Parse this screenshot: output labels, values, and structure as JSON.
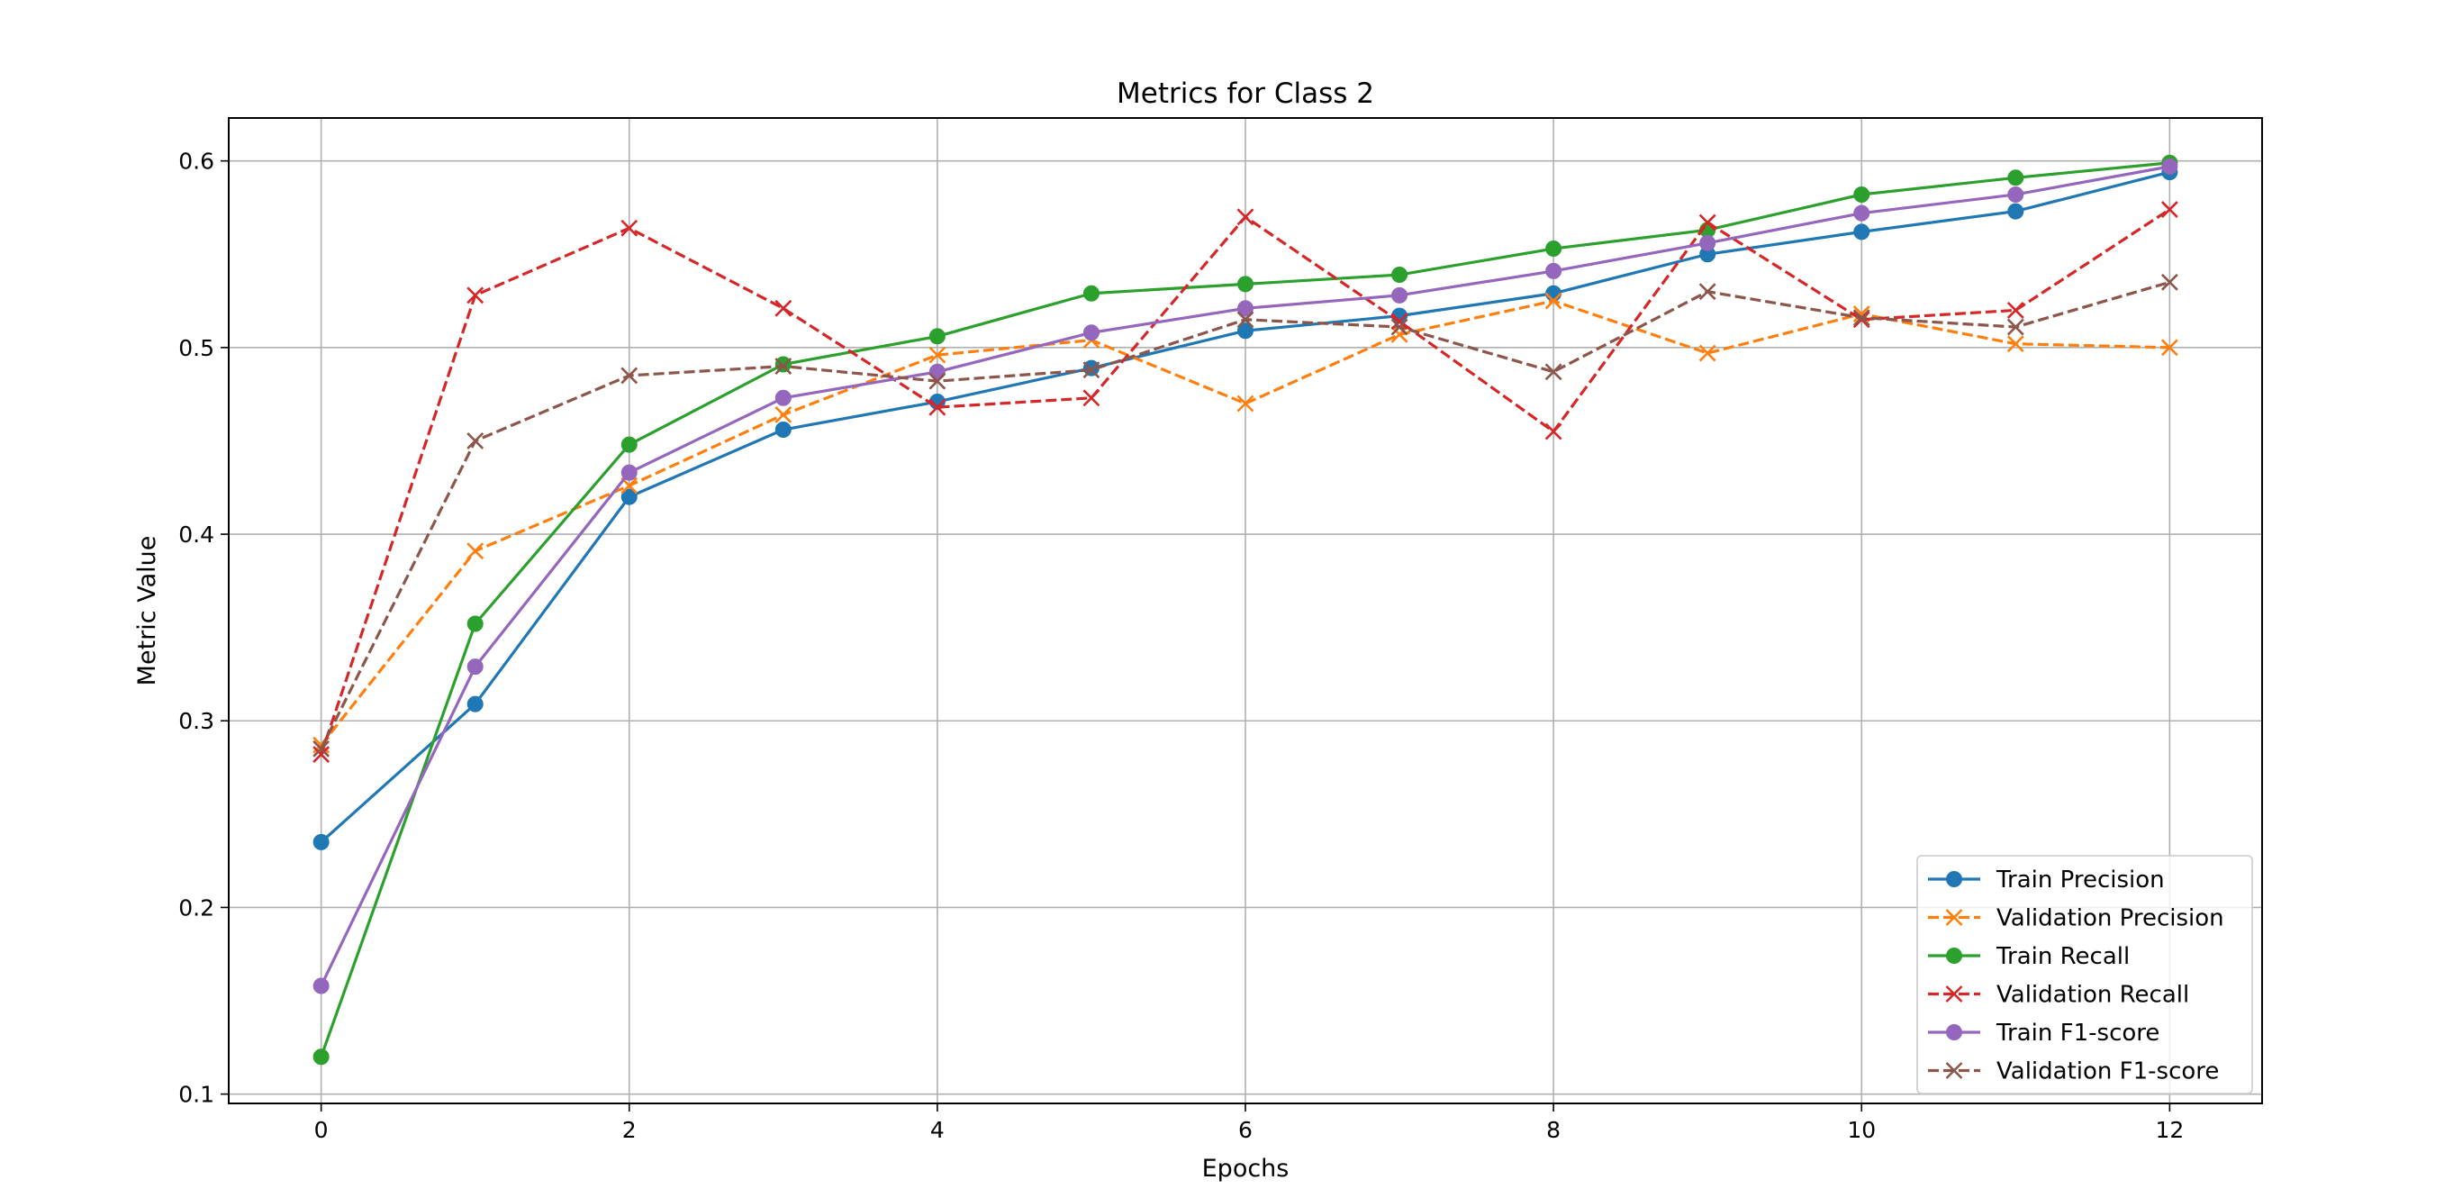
{
  "chart_data": {
    "type": "line",
    "title": "Metrics for Class 2",
    "xlabel": "Epochs",
    "ylabel": "Metric Value",
    "xlim": [
      -0.6,
      12.6
    ],
    "ylim": [
      0.095,
      0.623
    ],
    "xticks": [
      0,
      2,
      4,
      6,
      8,
      10,
      12
    ],
    "yticks": [
      0.1,
      0.2,
      0.3,
      0.4,
      0.5,
      0.6
    ],
    "xtick_labels": [
      "0",
      "2",
      "4",
      "6",
      "8",
      "10",
      "12"
    ],
    "ytick_labels": [
      "0.1",
      "0.2",
      "0.3",
      "0.4",
      "0.5",
      "0.6"
    ],
    "grid": true,
    "legend_position": "lower right",
    "x": [
      0,
      1,
      2,
      3,
      4,
      5,
      6,
      7,
      8,
      9,
      10,
      11,
      12
    ],
    "series": [
      {
        "name": "Train Precision",
        "color": "#1f77b4",
        "dash": "solid",
        "marker": "circle",
        "values": [
          0.235,
          0.309,
          0.42,
          0.456,
          0.471,
          0.489,
          0.509,
          0.517,
          0.529,
          0.55,
          0.562,
          0.573,
          0.594
        ]
      },
      {
        "name": "Validation Precision",
        "color": "#ff7f0e",
        "dash": "dashed",
        "marker": "x",
        "values": [
          0.287,
          0.391,
          0.426,
          0.464,
          0.496,
          0.504,
          0.47,
          0.507,
          0.525,
          0.497,
          0.518,
          0.502,
          0.5
        ]
      },
      {
        "name": "Train Recall",
        "color": "#2ca02c",
        "dash": "solid",
        "marker": "circle",
        "values": [
          0.12,
          0.352,
          0.448,
          0.491,
          0.506,
          0.529,
          0.534,
          0.539,
          0.553,
          0.563,
          0.582,
          0.591,
          0.599
        ]
      },
      {
        "name": "Validation Recall",
        "color": "#d62728",
        "dash": "dashed",
        "marker": "x",
        "values": [
          0.282,
          0.528,
          0.564,
          0.521,
          0.468,
          0.473,
          0.57,
          0.514,
          0.455,
          0.567,
          0.515,
          0.52,
          0.574
        ]
      },
      {
        "name": "Train F1-score",
        "color": "#9467bd",
        "dash": "solid",
        "marker": "circle",
        "values": [
          0.158,
          0.329,
          0.433,
          0.473,
          0.487,
          0.508,
          0.521,
          0.528,
          0.541,
          0.556,
          0.572,
          0.582,
          0.597
        ]
      },
      {
        "name": "Validation F1-score",
        "color": "#8c564b",
        "dash": "dashed",
        "marker": "x",
        "values": [
          0.285,
          0.45,
          0.485,
          0.49,
          0.482,
          0.488,
          0.515,
          0.511,
          0.487,
          0.53,
          0.516,
          0.511,
          0.535
        ]
      }
    ]
  }
}
